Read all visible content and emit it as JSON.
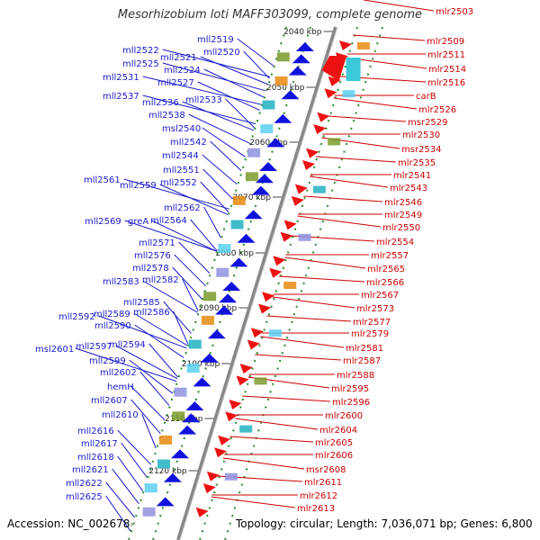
{
  "title": "Mesorhizobium loti MAFF303099, complete genome",
  "footer": {
    "accession": "Accession: NC_002678",
    "accession_suffix": "›",
    "summary": "Topology: circular; Length: 7,036,071 bp; Genes: 6,800"
  },
  "colors": {
    "left_label": "#1a1acc",
    "right_label": "#cc0000",
    "left_arrow": "#1111dd",
    "right_arrow": "#ee1111",
    "axis": "#888888",
    "tick": "#2a8a2a"
  },
  "scale_ticks": [
    "2040 kbp",
    "2050 kbp",
    "2060 kbp",
    "2070 kbp",
    "2080 kbp",
    "2090 kbp",
    "2100 kbp",
    "2110 kbp",
    "2120 kbp"
  ],
  "left_genes": [
    "mll2519",
    "mll2520",
    "mll2522",
    "mll2521",
    "mll2525",
    "mll2524",
    "mll2531",
    "mll2527",
    "mll2537",
    "mll2536",
    "mll2533",
    "mll2538",
    "msl2540",
    "mll2542",
    "mll2544",
    "mll2551",
    "mll2561",
    "mll2559",
    "mll2552",
    "mll2562",
    "mll2569",
    "greA",
    "mll2564",
    "mll2571",
    "mll2576",
    "mll2578",
    "mll2583",
    "mll2582",
    "mll2585",
    "mll2592",
    "mll2589",
    "mll2586",
    "mll2590",
    "msl2601",
    "mll2597",
    "mll2594",
    "mll2599",
    "mll2602",
    "hemH",
    "mll2607",
    "mll2610",
    "mll2616",
    "mll2617",
    "mll2618",
    "mll2621",
    "mll2622",
    "mll2625"
  ],
  "right_genes": [
    "mlr2503",
    "mlr2509",
    "mlr2511",
    "mlr2514",
    "mlr2516",
    "carB",
    "mlr2526",
    "msr2529",
    "mlr2530",
    "msr2534",
    "mlr2535",
    "mlr2541",
    "mlr2543",
    "mlr2546",
    "mlr2549",
    "mlr2550",
    "mlr2554",
    "mlr2557",
    "mlr2565",
    "mlr2566",
    "mlr2567",
    "mlr2573",
    "mlr2577",
    "mlr2579",
    "mlr2581",
    "mlr2587",
    "mlr2588",
    "mlr2595",
    "mlr2596",
    "mlr2600",
    "mlr2604",
    "mlr2605",
    "mlr2606",
    "msr2608",
    "mlr2611",
    "mlr2612",
    "mlr2613"
  ]
}
